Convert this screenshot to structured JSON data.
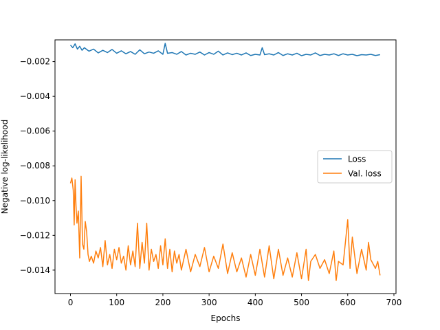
{
  "chart_data": {
    "type": "line",
    "title": "",
    "xlabel": "Epochs",
    "ylabel": "Negative log-likelihood",
    "xlim": [
      -33.5,
      704.5
    ],
    "ylim": [
      -0.01535,
      -0.00075
    ],
    "xticks": [
      0,
      100,
      200,
      300,
      400,
      500,
      600,
      700
    ],
    "xtick_labels": [
      "0",
      "100",
      "200",
      "300",
      "400",
      "500",
      "600",
      "700"
    ],
    "yticks": [
      -0.002,
      -0.004,
      -0.006,
      -0.008,
      -0.01,
      -0.012,
      -0.014
    ],
    "ytick_labels": [
      "−0.002",
      "−0.004",
      "−0.006",
      "−0.008",
      "−0.010",
      "−0.012",
      "−0.014"
    ],
    "grid": false,
    "legend": {
      "position": "center-right"
    },
    "series": [
      {
        "name": "Loss",
        "color": "#1f77b4",
        "x": [
          0,
          5,
          10,
          15,
          20,
          25,
          30,
          40,
          50,
          60,
          70,
          80,
          90,
          100,
          110,
          120,
          130,
          140,
          150,
          160,
          170,
          180,
          190,
          200,
          205,
          210,
          220,
          230,
          240,
          250,
          260,
          270,
          280,
          290,
          300,
          310,
          320,
          330,
          340,
          350,
          360,
          370,
          380,
          390,
          400,
          410,
          415,
          420,
          430,
          440,
          450,
          460,
          470,
          480,
          490,
          500,
          510,
          520,
          530,
          540,
          550,
          560,
          570,
          580,
          590,
          600,
          610,
          620,
          630,
          640,
          650,
          660,
          670
        ],
        "y": [
          -0.00105,
          -0.0012,
          -0.00098,
          -0.00128,
          -0.00112,
          -0.00135,
          -0.0012,
          -0.0014,
          -0.00128,
          -0.0015,
          -0.00135,
          -0.00148,
          -0.0013,
          -0.00152,
          -0.00138,
          -0.00155,
          -0.00142,
          -0.00158,
          -0.00132,
          -0.00155,
          -0.00145,
          -0.00152,
          -0.00138,
          -0.00158,
          -0.00095,
          -0.00152,
          -0.00148,
          -0.00158,
          -0.00142,
          -0.00162,
          -0.00152,
          -0.00158,
          -0.00145,
          -0.00162,
          -0.00148,
          -0.00158,
          -0.0014,
          -0.00162,
          -0.0015,
          -0.0016,
          -0.00152,
          -0.00162,
          -0.0015,
          -0.00165,
          -0.00158,
          -0.00162,
          -0.0012,
          -0.0016,
          -0.00155,
          -0.00162,
          -0.00148,
          -0.00165,
          -0.00155,
          -0.00162,
          -0.00152,
          -0.00166,
          -0.00158,
          -0.00162,
          -0.0015,
          -0.00165,
          -0.00158,
          -0.00162,
          -0.00155,
          -0.00165,
          -0.00155,
          -0.00162,
          -0.00158,
          -0.00166,
          -0.0016,
          -0.00162,
          -0.00158,
          -0.00165,
          -0.0016
        ]
      },
      {
        "name": "Val. loss",
        "color": "#ff7f0e",
        "x": [
          0,
          3,
          6,
          8,
          10,
          12,
          14,
          17,
          20,
          23,
          26,
          29,
          32,
          35,
          38,
          41,
          45,
          50,
          55,
          60,
          65,
          70,
          75,
          80,
          85,
          90,
          95,
          100,
          105,
          110,
          115,
          120,
          125,
          130,
          135,
          140,
          145,
          150,
          155,
          160,
          165,
          170,
          175,
          180,
          185,
          190,
          195,
          200,
          205,
          210,
          215,
          220,
          225,
          230,
          235,
          240,
          250,
          260,
          270,
          280,
          290,
          300,
          310,
          320,
          330,
          340,
          350,
          360,
          370,
          380,
          390,
          400,
          410,
          420,
          430,
          440,
          450,
          460,
          470,
          480,
          490,
          500,
          510,
          515,
          520,
          530,
          540,
          550,
          560,
          570,
          575,
          580,
          590,
          600,
          605,
          610,
          620,
          630,
          640,
          645,
          650,
          660,
          665,
          670
        ],
        "y": [
          -0.009,
          -0.0087,
          -0.0094,
          -0.0114,
          -0.0088,
          -0.0103,
          -0.0113,
          -0.0106,
          -0.0133,
          -0.0086,
          -0.0125,
          -0.0128,
          -0.0112,
          -0.0118,
          -0.0131,
          -0.0135,
          -0.0132,
          -0.0136,
          -0.0129,
          -0.0133,
          -0.0127,
          -0.0138,
          -0.0123,
          -0.0137,
          -0.0131,
          -0.0139,
          -0.0128,
          -0.0134,
          -0.0127,
          -0.0136,
          -0.0132,
          -0.014,
          -0.0126,
          -0.0137,
          -0.0129,
          -0.0138,
          -0.0113,
          -0.0139,
          -0.0124,
          -0.0136,
          -0.0113,
          -0.014,
          -0.0128,
          -0.0135,
          -0.0131,
          -0.0139,
          -0.0126,
          -0.0137,
          -0.0122,
          -0.0139,
          -0.0128,
          -0.0141,
          -0.0129,
          -0.0136,
          -0.0131,
          -0.014,
          -0.0128,
          -0.0141,
          -0.0131,
          -0.0138,
          -0.0127,
          -0.0141,
          -0.0132,
          -0.0139,
          -0.0125,
          -0.0142,
          -0.013,
          -0.0141,
          -0.0133,
          -0.0144,
          -0.0131,
          -0.0143,
          -0.0128,
          -0.0144,
          -0.0126,
          -0.0145,
          -0.0128,
          -0.0143,
          -0.0133,
          -0.0144,
          -0.013,
          -0.0145,
          -0.0128,
          -0.0146,
          -0.0135,
          -0.0131,
          -0.0139,
          -0.0134,
          -0.0142,
          -0.0129,
          -0.0146,
          -0.0135,
          -0.0137,
          -0.0111,
          -0.0139,
          -0.0121,
          -0.0142,
          -0.0128,
          -0.014,
          -0.0124,
          -0.0134,
          -0.0139,
          -0.0135,
          -0.0143
        ]
      }
    ]
  }
}
